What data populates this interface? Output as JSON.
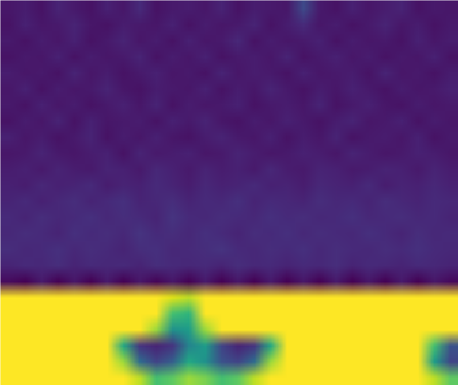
{
  "chart_data": {
    "type": "heatmap",
    "tick_labels": false,
    "zlim": [
      0,
      1
    ],
    "cells": [
      [
        0.06,
        0.08,
        0.05,
        0.1,
        0.07,
        0.05,
        0.09,
        0.06,
        0.12,
        0.05,
        0.07,
        0.08,
        0.06,
        0.1,
        0.05,
        0.08,
        0.07,
        0.06,
        0.22,
        0.07,
        0.05,
        0.09,
        0.06,
        0.08,
        0.1,
        0.05,
        0.07,
        0.06
      ],
      [
        0.05,
        0.09,
        0.06,
        0.07,
        0.1,
        0.06,
        0.05,
        0.08,
        0.07,
        0.06,
        0.09,
        0.05,
        0.08,
        0.06,
        0.07,
        0.1,
        0.05,
        0.08,
        0.12,
        0.06,
        0.08,
        0.05,
        0.07,
        0.1,
        0.06,
        0.08,
        0.05,
        0.07
      ],
      [
        0.07,
        0.05,
        0.08,
        0.06,
        0.09,
        0.05,
        0.07,
        0.1,
        0.06,
        0.08,
        0.05,
        0.09,
        0.06,
        0.07,
        0.11,
        0.05,
        0.08,
        0.06,
        0.07,
        0.09,
        0.05,
        0.08,
        0.06,
        0.07,
        0.05,
        0.09,
        0.06,
        0.08
      ],
      [
        0.05,
        0.07,
        0.06,
        0.09,
        0.05,
        0.08,
        0.06,
        0.07,
        0.1,
        0.05,
        0.08,
        0.06,
        0.09,
        0.05,
        0.07,
        0.08,
        0.06,
        0.1,
        0.05,
        0.07,
        0.09,
        0.06,
        0.08,
        0.05,
        0.07,
        0.06,
        0.09,
        0.05
      ],
      [
        0.08,
        0.06,
        0.07,
        0.05,
        0.1,
        0.06,
        0.08,
        0.05,
        0.07,
        0.09,
        0.06,
        0.07,
        0.05,
        0.1,
        0.06,
        0.08,
        0.07,
        0.05,
        0.09,
        0.06,
        0.07,
        0.08,
        0.05,
        0.1,
        0.06,
        0.07,
        0.05,
        0.08
      ],
      [
        0.06,
        0.09,
        0.05,
        0.08,
        0.06,
        0.07,
        0.1,
        0.06,
        0.05,
        0.08,
        0.07,
        0.06,
        0.09,
        0.05,
        0.08,
        0.06,
        0.1,
        0.07,
        0.05,
        0.08,
        0.06,
        0.09,
        0.07,
        0.05,
        0.08,
        0.06,
        0.07,
        0.09
      ],
      [
        0.07,
        0.05,
        0.09,
        0.06,
        0.08,
        0.05,
        0.07,
        0.09,
        0.06,
        0.1,
        0.05,
        0.08,
        0.06,
        0.07,
        0.09,
        0.05,
        0.07,
        0.08,
        0.06,
        0.1,
        0.05,
        0.07,
        0.09,
        0.06,
        0.05,
        0.08,
        0.06,
        0.07
      ],
      [
        0.05,
        0.08,
        0.06,
        0.1,
        0.05,
        0.09,
        0.06,
        0.07,
        0.08,
        0.05,
        0.09,
        0.07,
        0.1,
        0.06,
        0.05,
        0.08,
        0.06,
        0.09,
        0.07,
        0.05,
        0.08,
        0.1,
        0.06,
        0.07,
        0.09,
        0.05,
        0.08,
        0.06
      ],
      [
        0.09,
        0.06,
        0.08,
        0.05,
        0.07,
        0.1,
        0.05,
        0.08,
        0.06,
        0.09,
        0.06,
        0.05,
        0.08,
        0.1,
        0.07,
        0.06,
        0.09,
        0.05,
        0.08,
        0.06,
        0.1,
        0.05,
        0.07,
        0.08,
        0.06,
        0.09,
        0.05,
        0.07
      ],
      [
        0.06,
        0.07,
        0.1,
        0.07,
        0.06,
        0.08,
        0.09,
        0.05,
        0.1,
        0.07,
        0.08,
        0.09,
        0.06,
        0.07,
        0.1,
        0.08,
        0.06,
        0.07,
        0.09,
        0.08,
        0.06,
        0.1,
        0.08,
        0.06,
        0.07,
        0.09,
        0.08,
        0.06
      ],
      [
        0.08,
        0.09,
        0.07,
        0.1,
        0.08,
        0.07,
        0.1,
        0.09,
        0.07,
        0.11,
        0.09,
        0.07,
        0.1,
        0.08,
        0.09,
        0.07,
        0.11,
        0.08,
        0.07,
        0.1,
        0.09,
        0.07,
        0.08,
        0.1,
        0.09,
        0.07,
        0.1,
        0.08
      ],
      [
        0.09,
        0.08,
        0.11,
        0.09,
        0.1,
        0.12,
        0.08,
        0.1,
        0.09,
        0.12,
        0.1,
        0.08,
        0.11,
        0.09,
        0.1,
        0.12,
        0.09,
        0.1,
        0.08,
        0.11,
        0.1,
        0.09,
        0.12,
        0.08,
        0.1,
        0.09,
        0.11,
        0.09
      ],
      [
        0.1,
        0.12,
        0.09,
        0.11,
        0.13,
        0.1,
        0.12,
        0.14,
        0.1,
        0.11,
        0.13,
        0.1,
        0.12,
        0.11,
        0.14,
        0.1,
        0.12,
        0.11,
        0.1,
        0.13,
        0.11,
        0.12,
        0.1,
        0.13,
        0.11,
        0.1,
        0.12,
        0.11
      ],
      [
        0.12,
        0.1,
        0.13,
        0.11,
        0.12,
        0.14,
        0.11,
        0.13,
        0.12,
        0.1,
        0.15,
        0.12,
        0.11,
        0.13,
        0.12,
        0.11,
        0.14,
        0.12,
        0.13,
        0.11,
        0.12,
        0.14,
        0.11,
        0.12,
        0.13,
        0.11,
        0.12,
        0.1
      ],
      [
        0.11,
        0.13,
        0.12,
        0.1,
        0.14,
        0.12,
        0.13,
        0.11,
        0.15,
        0.12,
        0.13,
        0.11,
        0.14,
        0.12,
        0.1,
        0.13,
        0.12,
        0.14,
        0.11,
        0.13,
        0.12,
        0.11,
        0.14,
        0.12,
        0.1,
        0.13,
        0.11,
        0.12
      ],
      [
        0.13,
        0.11,
        0.12,
        0.14,
        0.11,
        0.13,
        0.12,
        0.1,
        0.13,
        0.14,
        0.11,
        0.12,
        0.13,
        0.15,
        0.12,
        0.11,
        0.13,
        0.12,
        0.14,
        0.11,
        0.13,
        0.12,
        0.11,
        0.13,
        0.12,
        0.14,
        0.12,
        0.11
      ],
      [
        0.1,
        0.12,
        0.11,
        0.13,
        0.1,
        0.12,
        0.11,
        0.12,
        0.1,
        0.13,
        0.12,
        0.11,
        0.12,
        0.1,
        0.13,
        0.11,
        0.12,
        0.1,
        0.12,
        0.11,
        0.13,
        0.1,
        0.12,
        0.11,
        0.1,
        0.12,
        0.11,
        0.1
      ],
      [
        0.03,
        0.0,
        0.07,
        0.0,
        0.06,
        0.0,
        0.07,
        0.0,
        0.06,
        0.01,
        0.06,
        0.0,
        0.07,
        0.0,
        0.06,
        0.0,
        0.07,
        0.0,
        0.06,
        0.0,
        0.07,
        0.0,
        0.06,
        0.0,
        0.07,
        0.0,
        0.06,
        0.02
      ],
      [
        1,
        1,
        1,
        1,
        1,
        1,
        1,
        1,
        1,
        1,
        0.95,
        0.9,
        1,
        1,
        1,
        1,
        1,
        1,
        1,
        1,
        1,
        1,
        1,
        1,
        1,
        1,
        1,
        1
      ],
      [
        1,
        1,
        1,
        1,
        1,
        1,
        1,
        1,
        1,
        1,
        0.7,
        0.65,
        1,
        1,
        1,
        1,
        1,
        1,
        1,
        1,
        1,
        1,
        1,
        1,
        1,
        1,
        1,
        1
      ],
      [
        1,
        1,
        1,
        1,
        1,
        1,
        1,
        1,
        1,
        0.85,
        0.5,
        0.55,
        0.85,
        1,
        1,
        1,
        1,
        1,
        1,
        1,
        1,
        1,
        1,
        1,
        1,
        1,
        1,
        1
      ],
      [
        1,
        1,
        1,
        1,
        1,
        1,
        1,
        0.6,
        0.15,
        0.1,
        0.15,
        0.45,
        0.55,
        0.2,
        0.1,
        0.15,
        0.6,
        1,
        1,
        1,
        1,
        1,
        1,
        1,
        1,
        1,
        0.7,
        0.25
      ],
      [
        1,
        1,
        1,
        1,
        1,
        1,
        1,
        0.85,
        0.35,
        0.2,
        0.3,
        0.6,
        0.5,
        0.25,
        0.2,
        0.35,
        0.85,
        1,
        1,
        1,
        1,
        1,
        1,
        1,
        1,
        1,
        0.55,
        0.2
      ],
      [
        1,
        1,
        1,
        1,
        1,
        1,
        1,
        1,
        0.9,
        0.7,
        0.75,
        0.85,
        0.8,
        0.7,
        0.75,
        0.9,
        1,
        1,
        1,
        1,
        1,
        1,
        1,
        1,
        1,
        1,
        0.9,
        0.75
      ]
    ]
  }
}
